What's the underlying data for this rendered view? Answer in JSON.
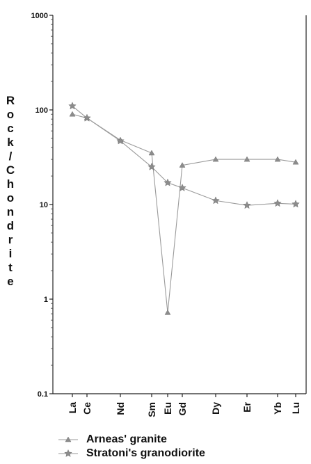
{
  "chart_data": {
    "type": "line",
    "yscale": "log",
    "ylabel": "Rock/Chondrite",
    "ylim": [
      0.1,
      1000
    ],
    "yticks": [
      "0.1",
      "1",
      "10",
      "100",
      "1000"
    ],
    "categories": [
      "La",
      "Ce",
      "Nd",
      "Sm",
      "Eu",
      "Gd",
      "Dy",
      "Er",
      "Yb",
      "Lu"
    ],
    "series": [
      {
        "name": "Arneas' granite",
        "marker": "triangle",
        "values": [
          90,
          82,
          48,
          35,
          0.72,
          26,
          30,
          30,
          30,
          28
        ]
      },
      {
        "name": "Stratoni's granodiorite",
        "marker": "star",
        "values": [
          110,
          82,
          47,
          25,
          17,
          15,
          11,
          9.8,
          10.3,
          10.1
        ]
      }
    ],
    "legend_position": "bottom-left",
    "grid": false,
    "line_color": "#9a9a9a",
    "marker_color": "#8c8c8c"
  }
}
